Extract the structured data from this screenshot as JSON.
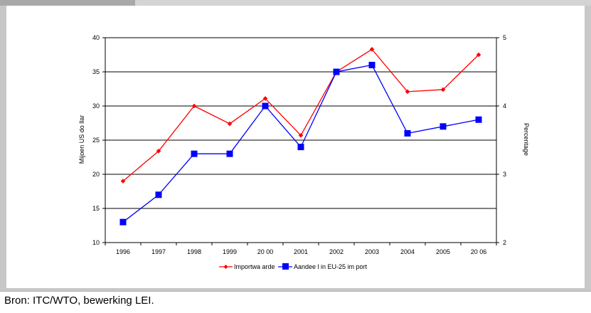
{
  "source_note": "Bron: ITC/WTO, bewerking LEI.",
  "chart_data": {
    "type": "line",
    "categories": [
      "1996",
      "1997",
      "1998",
      "1999",
      "2000",
      "2001",
      "2002",
      "2003",
      "2004",
      "2005",
      "2006"
    ],
    "category_labels": [
      "1996",
      "1997",
      "1998",
      "1999",
      "20 00",
      "2001",
      "2002",
      "2003",
      "2004",
      "2005",
      "20 06"
    ],
    "ylabel": "Mijoen US do llar",
    "y2label": "Percentage",
    "ylim": [
      10,
      40
    ],
    "yticks": [
      10,
      15,
      20,
      25,
      30,
      35,
      40
    ],
    "y2lim": [
      2,
      5
    ],
    "y2ticks": [
      2,
      3,
      4,
      5
    ],
    "grid": true,
    "legend_position": "bottom",
    "series": [
      {
        "name": "Importwaarde",
        "legend_label": "Importwa arde",
        "axis": "left",
        "color": "#ff0000",
        "marker": "diamond",
        "values": [
          19.0,
          23.4,
          30.0,
          27.4,
          31.1,
          25.7,
          35.0,
          38.3,
          32.1,
          32.4,
          37.5
        ]
      },
      {
        "name": "Aandeel in EU-25 import",
        "legend_label": "Aandee l in EU-25 im port",
        "axis": "right",
        "color": "#0000ff",
        "marker": "square",
        "values": [
          2.3,
          2.7,
          3.3,
          3.3,
          4.0,
          3.4,
          4.5,
          4.6,
          3.6,
          3.7,
          3.8
        ]
      }
    ]
  }
}
